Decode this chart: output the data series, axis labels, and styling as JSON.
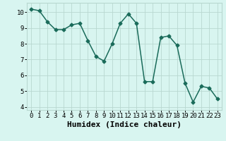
{
  "x": [
    0,
    1,
    2,
    3,
    4,
    5,
    6,
    7,
    8,
    9,
    10,
    11,
    12,
    13,
    14,
    15,
    16,
    17,
    18,
    19,
    20,
    21,
    22,
    23
  ],
  "y": [
    10.2,
    10.1,
    9.4,
    8.9,
    8.9,
    9.2,
    9.3,
    8.2,
    7.2,
    6.9,
    8.0,
    9.3,
    9.9,
    9.3,
    5.6,
    5.6,
    8.4,
    8.5,
    7.9,
    5.5,
    4.3,
    5.3,
    5.2,
    4.5
  ],
  "line_color": "#1a6b5a",
  "marker": "D",
  "markersize": 2.5,
  "linewidth": 1.1,
  "xlabel": "Humidex (Indice chaleur)",
  "xlim": [
    -0.5,
    23.5
  ],
  "ylim": [
    3.8,
    10.6
  ],
  "yticks": [
    4,
    5,
    6,
    7,
    8,
    9,
    10
  ],
  "xticks": [
    0,
    1,
    2,
    3,
    4,
    5,
    6,
    7,
    8,
    9,
    10,
    11,
    12,
    13,
    14,
    15,
    16,
    17,
    18,
    19,
    20,
    21,
    22,
    23
  ],
  "bg_color": "#d8f5f0",
  "grid_color": "#b8d8d0",
  "xlabel_fontsize": 8,
  "tick_fontsize": 6.5
}
